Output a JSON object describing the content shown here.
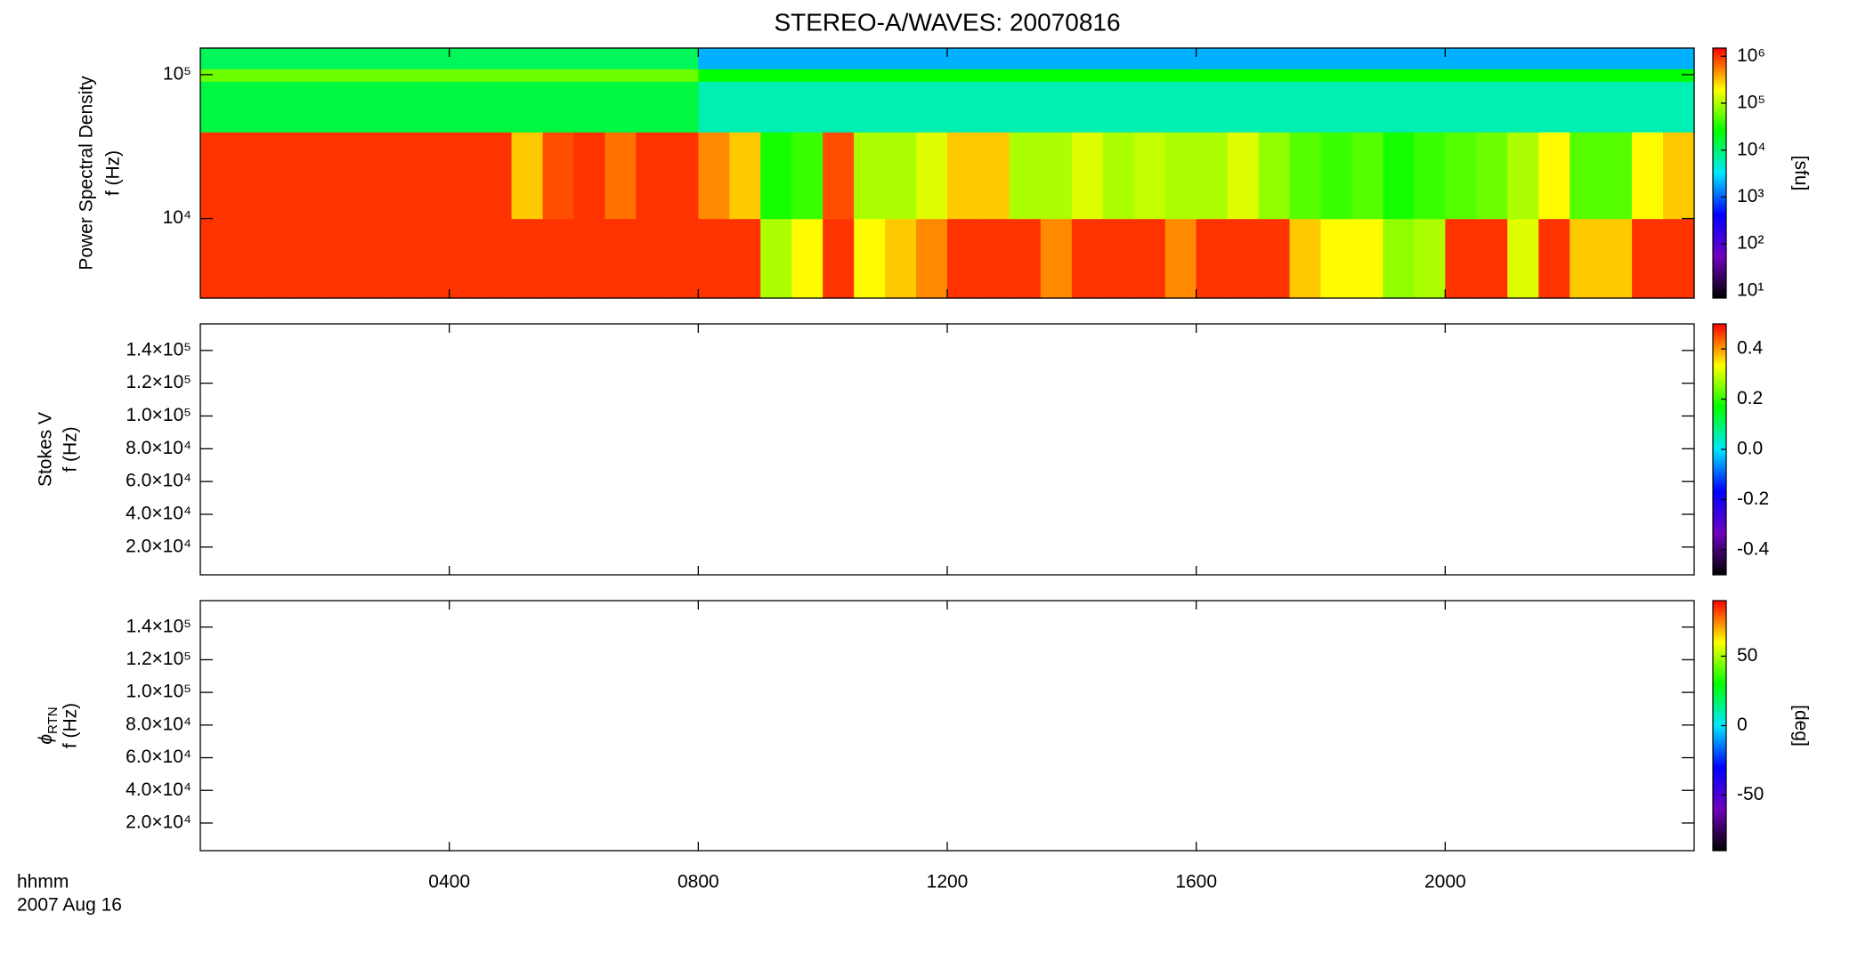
{
  "chart_data": [
    {
      "type": "heatmap",
      "title": "STEREO-A/WAVES: 20070816",
      "ylabel": "Power Spectral Density",
      "ylabel2": "f (Hz)",
      "xlim": [
        0,
        24
      ],
      "xticks": [
        4,
        8,
        12,
        16,
        20
      ],
      "ylog": true,
      "ylim": [
        2800,
        153000
      ],
      "yticks": [
        {
          "value": 10000,
          "label": "10⁴"
        },
        {
          "value": 100000,
          "label": "10⁵"
        }
      ],
      "time_bins": [
        0,
        0.5,
        1,
        1.5,
        2,
        2.5,
        3,
        3.5,
        4,
        4.5,
        5,
        5.5,
        6,
        6.5,
        7,
        7.5,
        8,
        8.5,
        9,
        9.5,
        10,
        10.5,
        11,
        11.5,
        12,
        12.5,
        13,
        13.5,
        14,
        14.5,
        15,
        15.5,
        16,
        16.5,
        17,
        17.5,
        18,
        18.5,
        19,
        19.5,
        20,
        20.5,
        21,
        21.5,
        22,
        22.5,
        23,
        23.5,
        24
      ],
      "freq_bins": [
        2800,
        10000,
        40000,
        90000,
        110000,
        153000
      ],
      "z": [
        [
          1000000,
          1000000,
          1000000,
          1000000,
          1000000,
          1000000,
          1000000,
          1000000,
          1000000,
          1000000,
          1000000,
          1000000,
          1000000,
          1000000,
          1000000,
          1000000,
          1000000,
          1000000,
          100000,
          200000,
          1000000,
          200000,
          300000,
          500000,
          1000000,
          1000000,
          1000000,
          500000,
          1000000,
          1000000,
          1000000,
          500000,
          1000000,
          1000000,
          1000000,
          300000,
          200000,
          200000,
          80000,
          100000,
          1000000,
          1000000,
          150000,
          1000000,
          300000,
          300000,
          1000000,
          1000000
        ],
        [
          1000000,
          1000000,
          1000000,
          1000000,
          1000000,
          1000000,
          1000000,
          1000000,
          1000000,
          1000000,
          300000,
          800000,
          1000000,
          600000,
          1000000,
          1000000,
          500000,
          300000,
          30000,
          40000,
          800000,
          100000,
          100000,
          150000,
          300000,
          300000,
          100000,
          100000,
          150000,
          100000,
          120000,
          100000,
          100000,
          150000,
          80000,
          50000,
          40000,
          50000,
          30000,
          40000,
          50000,
          60000,
          100000,
          200000,
          50000,
          50000,
          200000,
          300000
        ],
        [
          15000,
          15000,
          15000,
          15000,
          15000,
          15000,
          15000,
          15000,
          15000,
          15000,
          15000,
          15000,
          15000,
          15000,
          15000,
          15000,
          6000,
          6000,
          6000,
          6000,
          6000,
          6000,
          6000,
          6000,
          6000,
          6000,
          6000,
          6000,
          6000,
          6000,
          6000,
          6000,
          6000,
          6000,
          6000,
          6000,
          6000,
          6000,
          6000,
          6000,
          6000,
          6000,
          6000,
          6000,
          6000,
          6000,
          6000,
          6000
        ],
        [
          60000,
          60000,
          60000,
          60000,
          60000,
          60000,
          60000,
          60000,
          60000,
          60000,
          60000,
          60000,
          60000,
          60000,
          60000,
          60000,
          25000,
          25000,
          25000,
          25000,
          25000,
          25000,
          25000,
          25000,
          25000,
          25000,
          25000,
          25000,
          25000,
          25000,
          25000,
          25000,
          25000,
          25000,
          25000,
          25000,
          25000,
          25000,
          25000,
          25000,
          25000,
          25000,
          25000,
          25000,
          25000,
          25000,
          25000,
          25000
        ],
        [
          12000,
          12000,
          12000,
          12000,
          12000,
          12000,
          12000,
          12000,
          12000,
          12000,
          12000,
          12000,
          12000,
          12000,
          12000,
          12000,
          2000,
          2000,
          2000,
          2000,
          2000,
          2000,
          2000,
          2000,
          2000,
          2000,
          2000,
          2000,
          2000,
          2000,
          2000,
          2000,
          2000,
          2000,
          2000,
          2000,
          2000,
          2000,
          2000,
          2000,
          2000,
          2000,
          2000,
          2000,
          2000,
          2000,
          2000,
          2000
        ]
      ],
      "colorbar": {
        "label": "[sfu]",
        "log": true,
        "lim": [
          7,
          1500000
        ],
        "ticks": [
          {
            "value": 10,
            "label": "10¹"
          },
          {
            "value": 100,
            "label": "10²"
          },
          {
            "value": 1000,
            "label": "10³"
          },
          {
            "value": 10000,
            "label": "10⁴"
          },
          {
            "value": 100000,
            "label": "10⁵"
          },
          {
            "value": 1000000,
            "label": "10⁶"
          }
        ],
        "colors": [
          "#000000",
          "#7000c0",
          "#0000ff",
          "#00e8ff",
          "#00ff00",
          "#ffff00",
          "#ff0000"
        ]
      }
    },
    {
      "type": "heatmap",
      "ylabel": "Stokes V",
      "ylabel2": "f (Hz)",
      "xlim": [
        0,
        24
      ],
      "xticks": [
        4,
        8,
        12,
        16,
        20
      ],
      "ylog": false,
      "ylim": [
        3070,
        156200
      ],
      "yticks": [
        {
          "value": 20000,
          "label": "2.0×10⁴"
        },
        {
          "value": 40000,
          "label": "4.0×10⁴"
        },
        {
          "value": 60000,
          "label": "6.0×10⁴"
        },
        {
          "value": 80000,
          "label": "8.0×10⁴"
        },
        {
          "value": 100000,
          "label": "1.0×10⁵"
        },
        {
          "value": 120000,
          "label": "1.2×10⁵"
        },
        {
          "value": 140000,
          "label": "1.4×10⁵"
        }
      ],
      "colorbar": {
        "log": false,
        "lim": [
          -0.5,
          0.5
        ],
        "ticks": [
          -0.4,
          -0.2,
          {
            "value": 0,
            "label": "0.0"
          },
          0.2,
          0.4
        ],
        "colors": [
          "#000000",
          "#7000c0",
          "#0000ff",
          "#00e8ff",
          "#00ff00",
          "#ffff00",
          "#ff0000"
        ]
      }
    },
    {
      "type": "heatmap",
      "ylabel": "ϕ",
      "ylabel_sub": "RTN",
      "ylabel2": "f (Hz)",
      "xlabel": "hhmm",
      "date": "2007 Aug 16",
      "xlim": [
        0,
        24
      ],
      "xticks": [
        {
          "value": 4,
          "label": "0400"
        },
        {
          "value": 8,
          "label": "0800"
        },
        {
          "value": 12,
          "label": "1200"
        },
        {
          "value": 16,
          "label": "1600"
        },
        {
          "value": 20,
          "label": "2000"
        }
      ],
      "ylog": false,
      "ylim": [
        3070,
        156200
      ],
      "yticks": [
        {
          "value": 20000,
          "label": "2.0×10⁴"
        },
        {
          "value": 40000,
          "label": "4.0×10⁴"
        },
        {
          "value": 60000,
          "label": "6.0×10⁴"
        },
        {
          "value": 80000,
          "label": "8.0×10⁴"
        },
        {
          "value": 100000,
          "label": "1.0×10⁵"
        },
        {
          "value": 120000,
          "label": "1.2×10⁵"
        },
        {
          "value": 140000,
          "label": "1.4×10⁵"
        }
      ],
      "colorbar": {
        "label": "[deg]",
        "log": false,
        "lim": [
          -90,
          90
        ],
        "ticks": [
          -50,
          0,
          50
        ],
        "colors": [
          "#000000",
          "#7000c0",
          "#0000ff",
          "#00e8ff",
          "#00ff00",
          "#ffff00",
          "#ff0000"
        ]
      }
    }
  ]
}
